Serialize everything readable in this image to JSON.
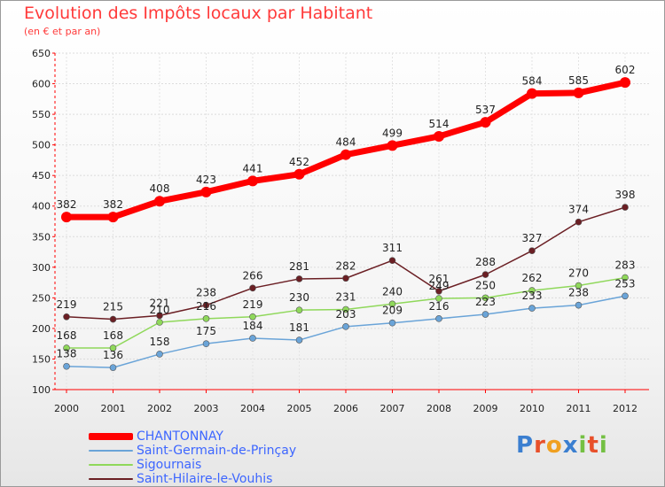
{
  "title": "Evolution des Impôts locaux par Habitant",
  "subtitle": "(en € et par an)",
  "logo": "Proxiti",
  "colors": {
    "title": "#ff3a3a",
    "legend_text": "#3d66ff",
    "axis": "#ff0000"
  },
  "chart_data": {
    "type": "line",
    "x": [
      "2000",
      "2001",
      "2002",
      "2003",
      "2004",
      "2005",
      "2006",
      "2007",
      "2008",
      "2009",
      "2010",
      "2011",
      "2012"
    ],
    "ylim": [
      100,
      650
    ],
    "yticks": [
      "100",
      "150",
      "200",
      "250",
      "300",
      "350",
      "400",
      "450",
      "500",
      "550",
      "600",
      "650"
    ],
    "grid": true,
    "legend_position": "bottom-left",
    "series": [
      {
        "name": "CHANTONNAY",
        "color": "#ff0000",
        "values": [
          382,
          382,
          408,
          423,
          441,
          452,
          484,
          499,
          514,
          537,
          584,
          585,
          602
        ]
      },
      {
        "name": "Saint-Germain-de-Prinçay",
        "color": "#6aa4d8",
        "values": [
          138,
          136,
          158,
          175,
          184,
          181,
          203,
          209,
          216,
          223,
          233,
          238,
          253
        ]
      },
      {
        "name": "Sigournais",
        "color": "#8fd85a",
        "values": [
          168,
          168,
          210,
          216,
          219,
          230,
          231,
          240,
          249,
          250,
          262,
          270,
          283
        ]
      },
      {
        "name": "Saint-Hilaire-le-Vouhis",
        "color": "#6b1f24",
        "values": [
          219,
          215,
          221,
          238,
          266,
          281,
          282,
          311,
          261,
          288,
          327,
          374,
          398
        ]
      }
    ]
  }
}
